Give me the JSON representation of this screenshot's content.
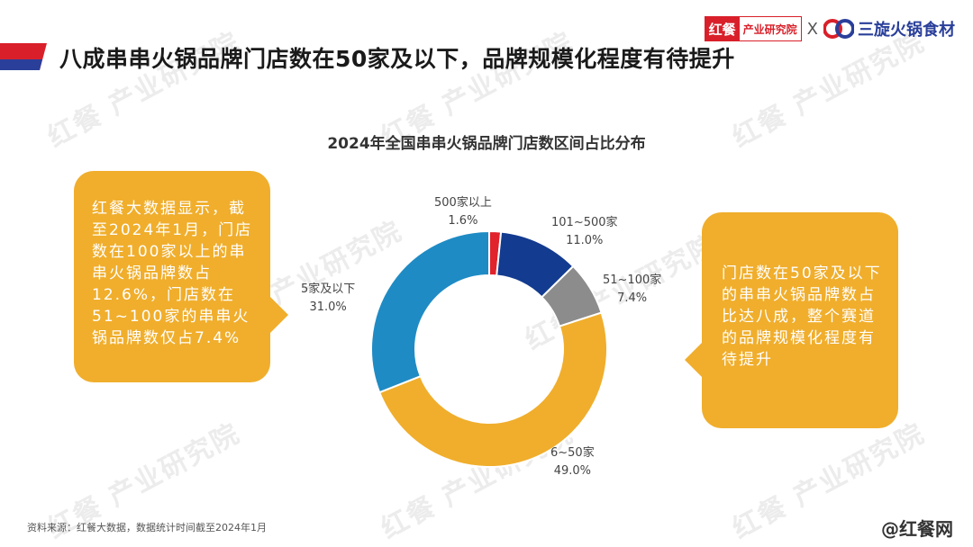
{
  "header": {
    "title": "八成串串火锅品牌门店数在50家及以下，品牌规模化程度有待提升",
    "accent_color": "#d9202a",
    "logo_hc": {
      "mark": "红餐",
      "text": "产业研究院"
    },
    "logo_separator": "X",
    "logo_partner": "三旋火锅食材"
  },
  "watermark": "红餐 产业研究院",
  "chart_data": {
    "type": "pie",
    "variant": "donut",
    "title": "2024年全国串串火锅品牌门店数区间占比分布",
    "categories": [
      "500家以上",
      "101~500家",
      "51~100家",
      "6~50家",
      "5家及以下"
    ],
    "values": [
      1.6,
      11.0,
      7.4,
      49.0,
      31.0
    ],
    "value_labels": [
      "1.6%",
      "11.0%",
      "7.4%",
      "49.0%",
      "31.0%"
    ],
    "colors": [
      "#e0232c",
      "#133b8f",
      "#8c8c8c",
      "#f0ae2c",
      "#1f8bc4"
    ]
  },
  "callouts": {
    "left": "红餐大数据显示，截至2024年1月，门店数在100家以上的串串火锅品牌数占12.6%，门店数在51~100家的串串火锅品牌数仅占7.4%",
    "right": "门店数在50家及以下的串串火锅品牌数占比达八成，整个赛道的品牌规模化程度有待提升",
    "color": "#f0ae2c"
  },
  "footer": {
    "source": "资料来源：红餐大数据，数据统计时间截至2024年1月",
    "brand": "@红餐网"
  }
}
